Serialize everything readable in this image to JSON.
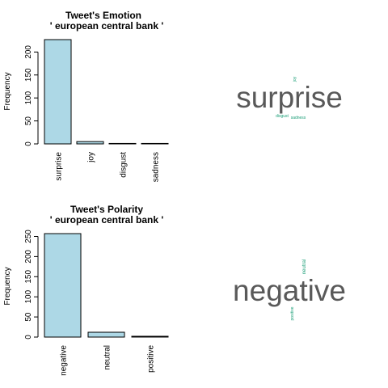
{
  "chart_data": [
    {
      "type": "bar",
      "title": "Tweet's Emotion",
      "subtitle": "' european central bank '",
      "xlabel": "",
      "ylabel": "Frequency",
      "categories": [
        "surprise",
        "joy",
        "disgust",
        "sadness"
      ],
      "values": [
        227,
        5,
        1,
        1
      ],
      "ylim": [
        0,
        227
      ],
      "yticks": [
        0,
        50,
        100,
        150,
        200
      ],
      "bar_color": "#add8e6",
      "grid": false,
      "legend": "none"
    },
    {
      "type": "bar",
      "title": "Tweet's Polarity",
      "subtitle": "' european central bank '",
      "xlabel": "",
      "ylabel": "Frequency",
      "categories": [
        "negative",
        "neutral",
        "positive"
      ],
      "values": [
        257,
        12,
        2
      ],
      "ylim": [
        0,
        257
      ],
      "yticks": [
        0,
        50,
        100,
        150,
        200,
        250
      ],
      "bar_color": "#add8e6",
      "grid": false,
      "legend": "none"
    }
  ],
  "wordclouds": [
    {
      "words": [
        {
          "text": "surprise",
          "weight": 227,
          "color": "#595959"
        },
        {
          "text": "joy",
          "weight": 5,
          "color": "#1b9e77"
        },
        {
          "text": "disgust",
          "weight": 1,
          "color": "#1b9e77"
        },
        {
          "text": "sadness",
          "weight": 1,
          "color": "#1b9e77"
        }
      ]
    },
    {
      "words": [
        {
          "text": "negative",
          "weight": 257,
          "color": "#595959"
        },
        {
          "text": "neutral",
          "weight": 12,
          "color": "#1b9e77"
        },
        {
          "text": "positive",
          "weight": 2,
          "color": "#1b9e77"
        }
      ]
    }
  ]
}
